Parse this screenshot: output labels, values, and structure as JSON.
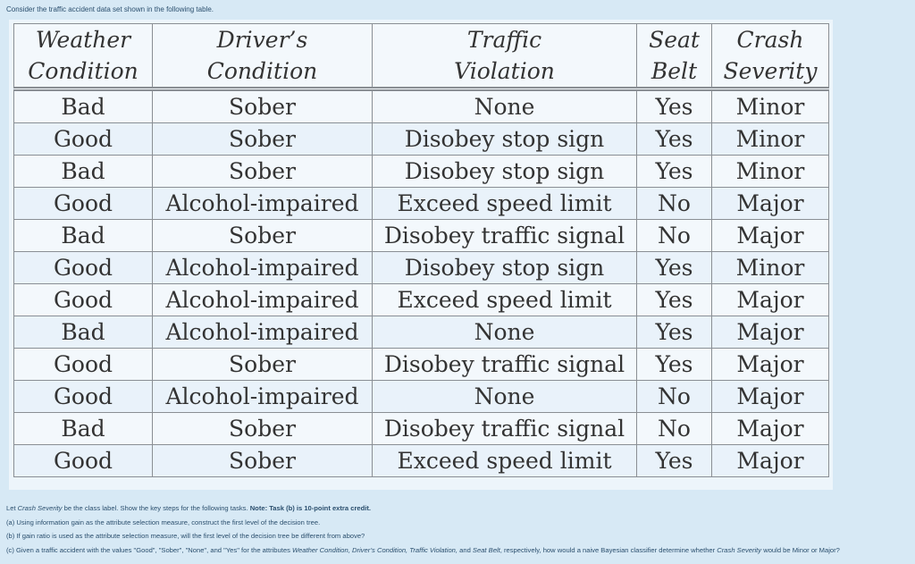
{
  "intro": "Consider the traffic accident data set shown in the following table.",
  "table": {
    "headers": [
      [
        "Weather",
        "Condition"
      ],
      [
        "Driver’s",
        "Condition"
      ],
      [
        "Traffic",
        "Violation"
      ],
      [
        "Seat",
        "Belt"
      ],
      [
        "Crash",
        "Severity"
      ]
    ],
    "rows": [
      [
        "Bad",
        "Sober",
        "None",
        "Yes",
        "Minor"
      ],
      [
        "Good",
        "Sober",
        "Disobey stop sign",
        "Yes",
        "Minor"
      ],
      [
        "Bad",
        "Sober",
        "Disobey stop sign",
        "Yes",
        "Minor"
      ],
      [
        "Good",
        "Alcohol-impaired",
        "Exceed speed limit",
        "No",
        "Major"
      ],
      [
        "Bad",
        "Sober",
        "Disobey traffic signal",
        "No",
        "Major"
      ],
      [
        "Good",
        "Alcohol-impaired",
        "Disobey stop sign",
        "Yes",
        "Minor"
      ],
      [
        "Good",
        "Alcohol-impaired",
        "Exceed speed limit",
        "Yes",
        "Major"
      ],
      [
        "Bad",
        "Alcohol-impaired",
        "None",
        "Yes",
        "Major"
      ],
      [
        "Good",
        "Sober",
        "Disobey traffic signal",
        "Yes",
        "Major"
      ],
      [
        "Good",
        "Alcohol-impaired",
        "None",
        "No",
        "Major"
      ],
      [
        "Bad",
        "Sober",
        "Disobey traffic signal",
        "No",
        "Major"
      ],
      [
        "Good",
        "Sober",
        "Exceed speed limit",
        "Yes",
        "Major"
      ]
    ]
  },
  "tasks": [
    [
      {
        "text": "Let "
      },
      {
        "text": "Crash Severity",
        "style": "italic"
      },
      {
        "text": " be the class label. Show the key steps for the following tasks. "
      },
      {
        "text": "Note: Task (b) is 10-point extra credit.",
        "style": "bold"
      }
    ],
    [
      {
        "text": "(a) Using information gain as the attribute selection measure, construct the first level of the decision tree."
      }
    ],
    [
      {
        "text": "(b) If gain ratio is used as the attribute selection measure, will the first level of the decision tree be different from above?"
      }
    ],
    [
      {
        "text": "(c) Given a traffic accident with the values \"Good\", \"Sober\", \"None\", and \"Yes\" for the attributes "
      },
      {
        "text": "Weather Condition, Driver’s Condition, Traffic Violation,",
        "style": "italic"
      },
      {
        "text": " and "
      },
      {
        "text": "Seat Belt",
        "style": "italic"
      },
      {
        "text": ", respectively, how would a naive Bayesian classifier determine whether "
      },
      {
        "text": "Crash Severity",
        "style": "italic"
      },
      {
        "text": " would be Minor or Major?"
      }
    ]
  ]
}
